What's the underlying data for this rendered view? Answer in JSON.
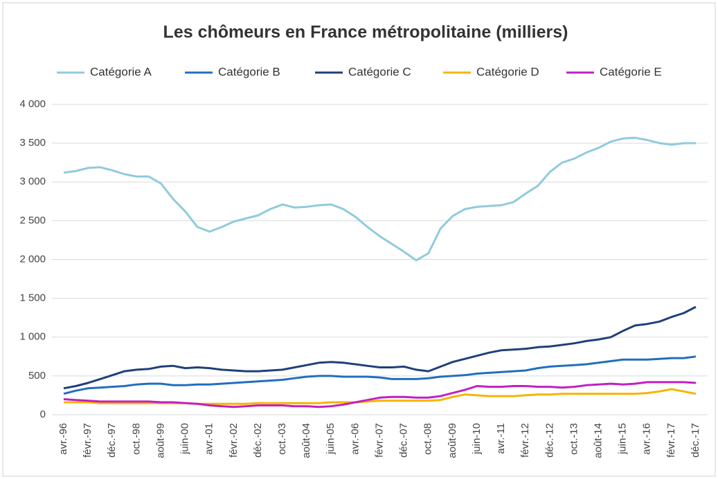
{
  "chart_data": {
    "type": "line",
    "title": "Les chômeurs en France métropolitaine (milliers)",
    "categories": [
      "avr.-96",
      null,
      "févr.-97",
      null,
      "déc.-97",
      null,
      "oct.-98",
      null,
      "août-99",
      null,
      "juin-00",
      null,
      "avr.-01",
      null,
      "févr.-02",
      null,
      "déc.-02",
      null,
      "oct.-03",
      null,
      "août-04",
      null,
      "juin-05",
      null,
      "avr.-06",
      null,
      "févr.-07",
      null,
      "déc.-07",
      null,
      "oct.-08",
      null,
      "août-09",
      null,
      "juin-10",
      null,
      "avr.-11",
      null,
      "févr.-12",
      null,
      "déc.-12",
      null,
      "oct.-13",
      null,
      "août-14",
      null,
      "juin-15",
      null,
      "avr.-16",
      null,
      "févr.-17",
      null,
      "déc.-17"
    ],
    "series": [
      {
        "name": "Catégorie A",
        "color": "#8fcbdc",
        "values": [
          3120,
          3140,
          3180,
          3190,
          3150,
          3100,
          3070,
          3070,
          2980,
          2780,
          2620,
          2420,
          2360,
          2420,
          2490,
          2530,
          2570,
          2650,
          2710,
          2670,
          2680,
          2700,
          2710,
          2650,
          2550,
          2420,
          2300,
          2200,
          2100,
          1990,
          2080,
          2400,
          2560,
          2650,
          2680,
          2690,
          2700,
          2740,
          2850,
          2950,
          3130,
          3250,
          3300,
          3380,
          3440,
          3520,
          3560,
          3570,
          3540,
          3500,
          3480,
          3500,
          3500
        ]
      },
      {
        "name": "Catégorie B",
        "color": "#1f6fc0",
        "values": [
          270,
          310,
          340,
          350,
          360,
          370,
          390,
          400,
          400,
          380,
          380,
          390,
          390,
          400,
          410,
          420,
          430,
          440,
          450,
          470,
          490,
          500,
          500,
          490,
          490,
          490,
          480,
          460,
          460,
          460,
          470,
          490,
          500,
          510,
          530,
          540,
          550,
          560,
          570,
          600,
          620,
          630,
          640,
          650,
          670,
          690,
          710,
          710,
          710,
          720,
          730,
          730,
          750
        ]
      },
      {
        "name": "Catégorie C",
        "color": "#1f3f7a",
        "values": [
          340,
          370,
          410,
          460,
          510,
          560,
          580,
          590,
          620,
          630,
          600,
          610,
          600,
          580,
          570,
          560,
          560,
          570,
          580,
          610,
          640,
          670,
          680,
          670,
          650,
          630,
          610,
          610,
          620,
          580,
          560,
          620,
          680,
          720,
          760,
          800,
          830,
          840,
          850,
          870,
          880,
          900,
          920,
          950,
          970,
          1000,
          1080,
          1150,
          1170,
          1200,
          1260,
          1310,
          1390
        ]
      },
      {
        "name": "Catégorie D",
        "color": "#f5b400",
        "values": [
          160,
          160,
          160,
          150,
          150,
          150,
          150,
          150,
          150,
          150,
          150,
          140,
          140,
          140,
          140,
          140,
          150,
          150,
          150,
          150,
          150,
          150,
          160,
          160,
          160,
          170,
          180,
          180,
          180,
          180,
          180,
          190,
          230,
          260,
          250,
          240,
          240,
          240,
          250,
          260,
          260,
          270,
          270,
          270,
          270,
          270,
          270,
          270,
          280,
          300,
          330,
          300,
          270
        ]
      },
      {
        "name": "Catégorie E",
        "color": "#c21fc2",
        "values": [
          200,
          190,
          180,
          170,
          170,
          170,
          170,
          170,
          160,
          160,
          150,
          140,
          120,
          110,
          100,
          110,
          120,
          120,
          120,
          110,
          110,
          100,
          110,
          130,
          160,
          190,
          220,
          230,
          230,
          220,
          220,
          240,
          280,
          320,
          370,
          360,
          360,
          370,
          370,
          360,
          360,
          350,
          360,
          380,
          390,
          400,
          390,
          400,
          420,
          420,
          420,
          420,
          410
        ]
      }
    ],
    "ylim": [
      0,
      4000
    ],
    "yticks": [
      0,
      500,
      {
        "value": 1000,
        "label": "1 000"
      },
      {
        "value": 1500,
        "label": "1 500"
      },
      {
        "value": 2000,
        "label": "2 000"
      },
      {
        "value": 2500,
        "label": "2 500"
      },
      {
        "value": 3000,
        "label": "3 000"
      },
      {
        "value": 3500,
        "label": "3 500"
      },
      {
        "value": 4000,
        "label": "4 000"
      }
    ],
    "grid": true,
    "legend": "top"
  }
}
